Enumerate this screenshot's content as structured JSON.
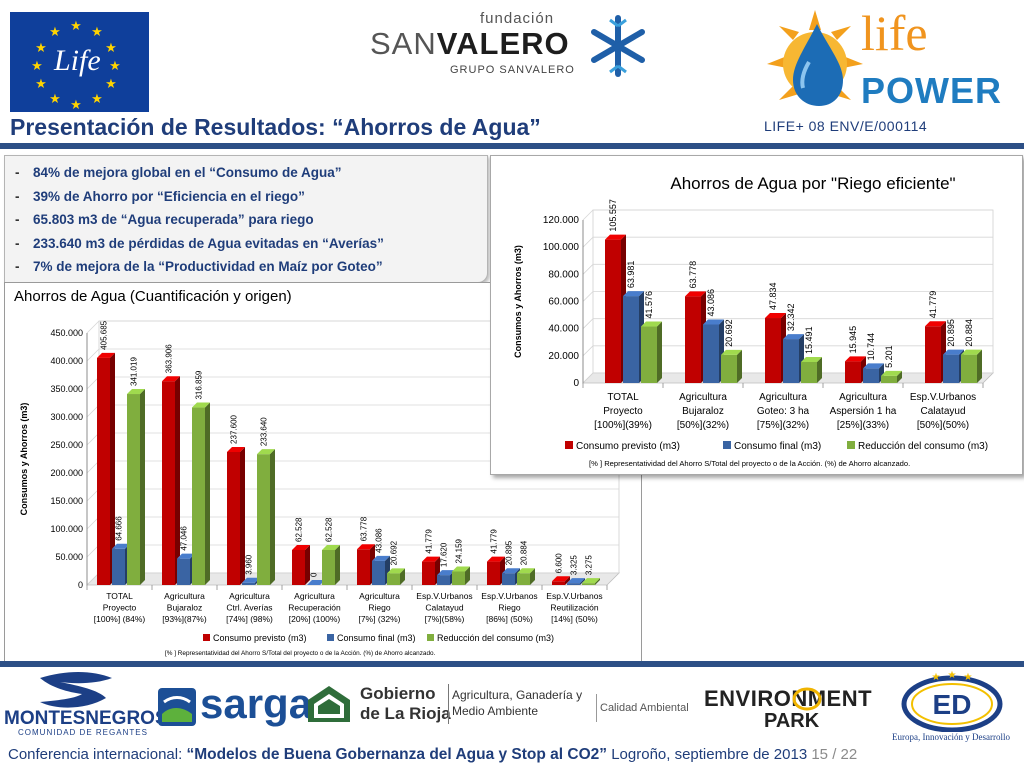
{
  "header": {
    "eu_logo_text": "Life",
    "fundacion_top": "fundación",
    "fundacion_name_a": "SAN",
    "fundacion_name_b": "VALERO",
    "fundacion_group": "GRUPO SANVALERO",
    "lifepower_a": "life",
    "lifepower_b": "POWER",
    "slide_title": "Presentación de Resultados: “Ahorros de Agua”",
    "project_code": "LIFE+ 08 ENV/E/000114"
  },
  "bullets": [
    {
      "dash": "-",
      "text": "84% de mejora global en el “Consumo de Agua”"
    },
    {
      "dash": "-",
      "text": "39% de Ahorro por “Eficiencia en el riego”"
    },
    {
      "dash": "-",
      "text": "65.803 m3 de “Agua recuperada” para riego"
    },
    {
      "dash": "-",
      "text": "233.640 m3 de pérdidas de Agua evitadas en “Averías”"
    },
    {
      "dash": "-",
      "text": "7% de mejora de la “Productividad en Maíz por Goteo”"
    }
  ],
  "colors": {
    "series1": "#c00000",
    "series2": "#3a64a3",
    "series3": "#80ae3e",
    "title_blue": "#1f3d7a"
  },
  "chart_data": [
    {
      "type": "bar",
      "title": "Ahorros de Agua (Cuantificación y origen)",
      "ylabel": "Consumos y Ahorros (m3)",
      "ylim": [
        0,
        450000
      ],
      "yticks": [
        0,
        50000,
        100000,
        150000,
        200000,
        250000,
        300000,
        350000,
        400000,
        450000
      ],
      "ytick_labels": [
        "0",
        "50.000",
        "100.000",
        "150.000",
        "200.000",
        "250.000",
        "300.000",
        "350.000",
        "400.000",
        "450.000"
      ],
      "categories": [
        [
          "TOTAL",
          "Proyecto",
          "[100%] (84%)"
        ],
        [
          "Agricultura",
          "Bujaraloz",
          "[93%](87%)"
        ],
        [
          "Agricultura",
          "Ctrl. Averías",
          "[74%] (98%)"
        ],
        [
          "Agricultura",
          "Recuperación",
          "[20%] (100%)"
        ],
        [
          "Agricultura",
          "Riego",
          "[7%] (32%)"
        ],
        [
          "Esp.V.Urbanos",
          "Calatayud",
          "[7%](58%)"
        ],
        [
          "Esp.V.Urbanos",
          "Riego",
          "[86%] (50%)"
        ],
        [
          "Esp.V.Urbanos",
          "Reutilización",
          "[14%] (50%)"
        ]
      ],
      "series": [
        {
          "name": "Consumo previsto (m3)",
          "values": [
            405685,
            363906,
            237600,
            62528,
            63778,
            41779,
            41779,
            6600
          ],
          "labels": [
            "405.685",
            "363.906",
            "237.600",
            "62.528",
            "63.778",
            "41.779",
            "41.779",
            "6.600"
          ]
        },
        {
          "name": "Consumo final (m3)",
          "values": [
            64666,
            47046,
            3960,
            0,
            43086,
            17620,
            20895,
            3325
          ],
          "labels": [
            "64.666",
            "47.046",
            "3.960",
            "0",
            "43.086",
            "17.620",
            "20.895",
            "3.325"
          ]
        },
        {
          "name": "Reducción del consumo (m3)",
          "values": [
            341019,
            316859,
            233640,
            62528,
            20692,
            24159,
            20884,
            3275
          ],
          "labels": [
            "341.019",
            "316.859",
            "233.640",
            "62.528",
            "20.692",
            "24.159",
            "20.884",
            "3.275"
          ]
        }
      ],
      "footnote": "[% ] Representatividad del Ahorro S/Total del proyecto o de la Acción. (%) de Ahorro alcanzado.",
      "legend": "bottom"
    },
    {
      "type": "bar",
      "title": "Ahorros de Agua por \"Riego eficiente\"",
      "ylabel": "Consumos y Ahorros (m3)",
      "ylim": [
        0,
        120000
      ],
      "yticks": [
        0,
        20000,
        40000,
        60000,
        80000,
        100000,
        120000
      ],
      "ytick_labels": [
        "0",
        "20.000",
        "40.000",
        "60.000",
        "80.000",
        "100.000",
        "120.000"
      ],
      "categories": [
        [
          "TOTAL",
          "Proyecto",
          "[100%](39%)"
        ],
        [
          "Agricultura",
          "Bujaraloz",
          "[50%](32%)"
        ],
        [
          "Agricultura",
          "Goteo: 3 ha",
          "[75%](32%)"
        ],
        [
          "Agricultura",
          "Aspersión 1 ha",
          "[25%](33%)"
        ],
        [
          "Esp.V.Urbanos",
          "Calatayud",
          "[50%](50%)"
        ]
      ],
      "series": [
        {
          "name": "Consumo previsto (m3)",
          "values": [
            105557,
            63778,
            47834,
            15945,
            41779
          ],
          "labels": [
            "105.557",
            "63.778",
            "47.834",
            "15.945",
            "41.779"
          ]
        },
        {
          "name": "Consumo final (m3)",
          "values": [
            63981,
            43086,
            32342,
            10744,
            20895
          ],
          "labels": [
            "63.981",
            "43.086",
            "32.342",
            "10.744",
            "20.895"
          ]
        },
        {
          "name": "Reducción del consumo (m3)",
          "values": [
            41576,
            20692,
            15491,
            5201,
            20884
          ],
          "labels": [
            "41.576",
            "20.692",
            "15.491",
            "5.201",
            "20.884"
          ]
        }
      ],
      "footnote": "[% ] Representatividad del Ahorro S/Total del proyecto o de la Acción. (%) de Ahorro alcanzado.",
      "legend": "bottom"
    }
  ],
  "footer": {
    "logos": {
      "montes": "MONTESNEGROS",
      "montes_sub": "COMUNIDAD DE REGANTES",
      "sarga": "sarga",
      "gobierno": "Gobierno",
      "gobierno_b": "de La Rioja",
      "agri": "Agricultura, Ganadería y",
      "agri_b": "Medio Ambiente",
      "calidad": "Calidad Ambiental",
      "env_a": "ENVIRONMENT",
      "env_b": "PARK",
      "europa": "Europa, Innovación y Desarrollo"
    },
    "conference_label": "Conferencia internacional: ",
    "conference_title": "“Modelos de Buena Gobernanza del Agua y Stop al CO2”",
    "location": " Logroño, septiembre de 2013 ",
    "page": "15 / 22"
  }
}
